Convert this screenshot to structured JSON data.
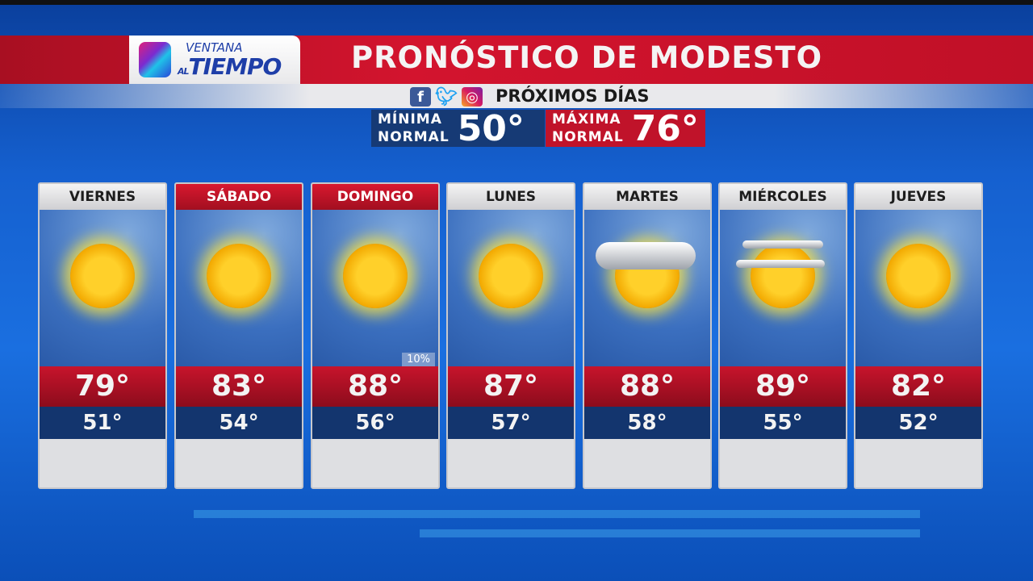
{
  "logo": {
    "line1": "VENTANA",
    "line2_prefix": "AL",
    "line2": "TIEMPO"
  },
  "header": {
    "title": "PRONÓSTICO DE MODESTO",
    "subtitle": "PRÓXIMOS DÍAS",
    "social_icons": [
      "facebook-icon",
      "twitter-icon",
      "instagram-icon"
    ]
  },
  "normals": {
    "min_label1": "MÍNIMA",
    "min_label2": "NORMAL",
    "min_value": "50°",
    "max_label1": "MÁXIMA",
    "max_label2": "NORMAL",
    "max_value": "76°"
  },
  "colors": {
    "red": "#c7142c",
    "navy": "#13356e",
    "blue": "#1560cf"
  },
  "days": [
    {
      "name": "VIERNES",
      "highlight": false,
      "icon": "sunny-icon",
      "high": "79°",
      "low": "51°"
    },
    {
      "name": "SÁBADO",
      "highlight": true,
      "icon": "sunny-icon",
      "high": "83°",
      "low": "54°"
    },
    {
      "name": "DOMINGO",
      "highlight": true,
      "icon": "sunny-icon",
      "high": "88°",
      "low": "56°",
      "precip": "10%"
    },
    {
      "name": "LUNES",
      "highlight": false,
      "icon": "sunny-icon",
      "high": "87°",
      "low": "57°"
    },
    {
      "name": "MARTES",
      "highlight": false,
      "icon": "partly-cloudy-icon",
      "high": "88°",
      "low": "58°"
    },
    {
      "name": "MIÉRCOLES",
      "highlight": false,
      "icon": "sun-high-clouds-icon",
      "high": "89°",
      "low": "55°"
    },
    {
      "name": "JUEVES",
      "highlight": false,
      "icon": "sunny-icon",
      "high": "82°",
      "low": "52°"
    }
  ]
}
